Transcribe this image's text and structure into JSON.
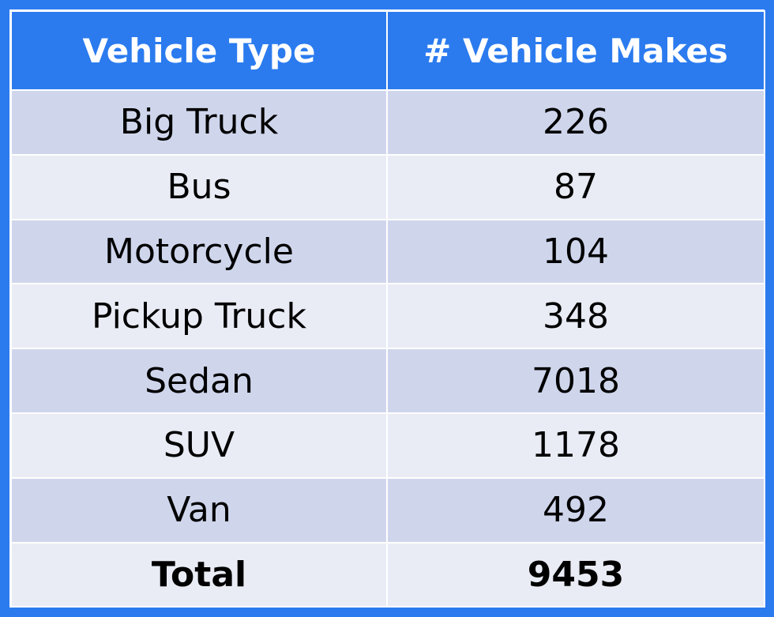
{
  "table": {
    "headers": [
      "Vehicle Type",
      "# Vehicle Makes"
    ],
    "rows": [
      {
        "type": "Big Truck",
        "makes": "226"
      },
      {
        "type": "Bus",
        "makes": "87"
      },
      {
        "type": "Motorcycle",
        "makes": "104"
      },
      {
        "type": "Pickup Truck",
        "makes": "348"
      },
      {
        "type": "Sedan",
        "makes": "7018"
      },
      {
        "type": "SUV",
        "makes": "1178"
      },
      {
        "type": "Van",
        "makes": "492"
      },
      {
        "type": "Total",
        "makes": "9453"
      }
    ]
  },
  "colors": {
    "header_bg": "#2b7bef",
    "header_text": "#ffffff",
    "row_band_dark": "#cfd6ec",
    "row_band_light": "#e9ecf5"
  }
}
